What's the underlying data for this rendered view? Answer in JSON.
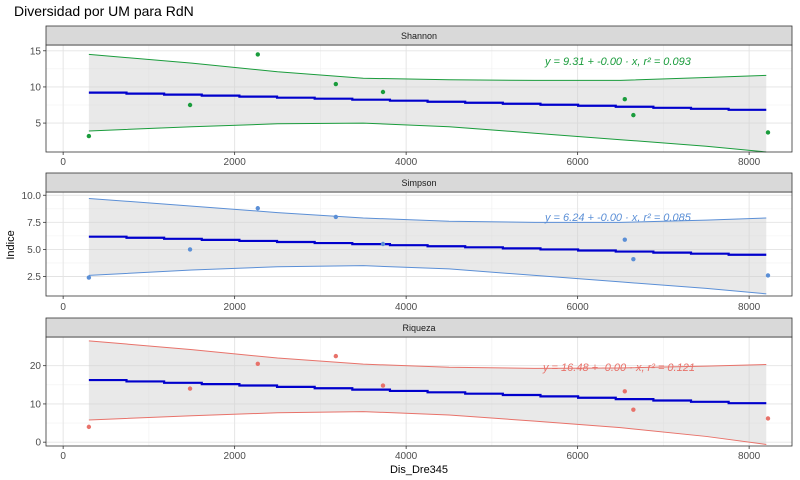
{
  "title": "Diversidad por UM para RdN",
  "chart_data": {
    "type": "scatter",
    "title": "Diversidad por UM para RdN",
    "xlabel": "Dis_Dre345",
    "ylabel": "Indice",
    "xlim": [
      -200,
      8500
    ],
    "x_ticks": [
      0,
      2000,
      4000,
      6000,
      8000
    ],
    "x": [
      300,
      1480,
      2270,
      3180,
      3730,
      6550,
      6650,
      8220
    ],
    "fit_color": "#0000cc",
    "panels": [
      {
        "name": "Shannon",
        "color": "#1a9c3c",
        "y": [
          3.2,
          7.5,
          14.5,
          10.4,
          9.3,
          8.3,
          6.1,
          3.7
        ],
        "ylim": [
          1.0,
          15.8
        ],
        "y_ticks": [
          5,
          10,
          15
        ],
        "fit": {
          "intercept": 9.31,
          "slope": -0.000319
        },
        "band_upper": [
          [
            300,
            14.5
          ],
          [
            1500,
            13.3
          ],
          [
            2500,
            12.1
          ],
          [
            3500,
            11.2
          ],
          [
            4500,
            11.0
          ],
          [
            5500,
            10.9
          ],
          [
            6500,
            10.9
          ],
          [
            7500,
            11.3
          ],
          [
            8200,
            11.6
          ]
        ],
        "band_lower": [
          [
            300,
            3.9
          ],
          [
            1500,
            4.5
          ],
          [
            2500,
            4.9
          ],
          [
            3500,
            5.0
          ],
          [
            4500,
            4.5
          ],
          [
            5500,
            3.6
          ],
          [
            6500,
            2.7
          ],
          [
            7500,
            1.8
          ],
          [
            8200,
            1.0
          ]
        ],
        "equation": "y = 9.31 + -0.00 · x,  r² = 0.093"
      },
      {
        "name": "Simpson",
        "color": "#5b8fd6",
        "y": [
          2.4,
          5.0,
          8.8,
          8.0,
          5.5,
          5.9,
          4.1,
          2.6
        ],
        "ylim": [
          0.7,
          10.3
        ],
        "y_ticks": [
          2.5,
          5.0,
          7.5,
          10.0
        ],
        "y_tick_labels": [
          "2.5",
          "5.0",
          "7.5",
          "10.0"
        ],
        "fit": {
          "intercept": 6.24,
          "slope": -0.000223
        },
        "band_upper": [
          [
            300,
            9.7
          ],
          [
            1500,
            9.0
          ],
          [
            2500,
            8.4
          ],
          [
            3500,
            7.9
          ],
          [
            4500,
            7.6
          ],
          [
            5500,
            7.5
          ],
          [
            6500,
            7.5
          ],
          [
            7500,
            7.7
          ],
          [
            8200,
            7.9
          ]
        ],
        "band_lower": [
          [
            300,
            2.6
          ],
          [
            1500,
            3.1
          ],
          [
            2500,
            3.4
          ],
          [
            3500,
            3.5
          ],
          [
            4500,
            3.2
          ],
          [
            5500,
            2.6
          ],
          [
            6500,
            2.0
          ],
          [
            7500,
            1.4
          ],
          [
            8200,
            0.9
          ]
        ],
        "equation": "y = 6.24 + -0.00 · x,  r² = 0.085"
      },
      {
        "name": "Riqueza",
        "color": "#e8726a",
        "y": [
          4.0,
          14.0,
          20.5,
          22.5,
          14.8,
          13.3,
          8.5,
          6.2
        ],
        "ylim": [
          -1.0,
          27.5
        ],
        "y_ticks": [
          0,
          10,
          20
        ],
        "fit": {
          "intercept": 16.48,
          "slope": -0.00081
        },
        "band_upper": [
          [
            300,
            26.5
          ],
          [
            1500,
            24.2
          ],
          [
            2500,
            22.0
          ],
          [
            3500,
            20.4
          ],
          [
            4500,
            19.6
          ],
          [
            5500,
            19.3
          ],
          [
            6500,
            19.4
          ],
          [
            7500,
            19.9
          ],
          [
            8200,
            20.3
          ]
        ],
        "band_lower": [
          [
            300,
            5.8
          ],
          [
            1500,
            6.9
          ],
          [
            2500,
            7.7
          ],
          [
            3500,
            8.0
          ],
          [
            4500,
            7.1
          ],
          [
            5500,
            5.5
          ],
          [
            6500,
            3.8
          ],
          [
            7500,
            1.5
          ],
          [
            8200,
            -0.6
          ]
        ],
        "equation": "y = 16.48 + -0.00 · x,  r² = 0.121"
      }
    ]
  }
}
